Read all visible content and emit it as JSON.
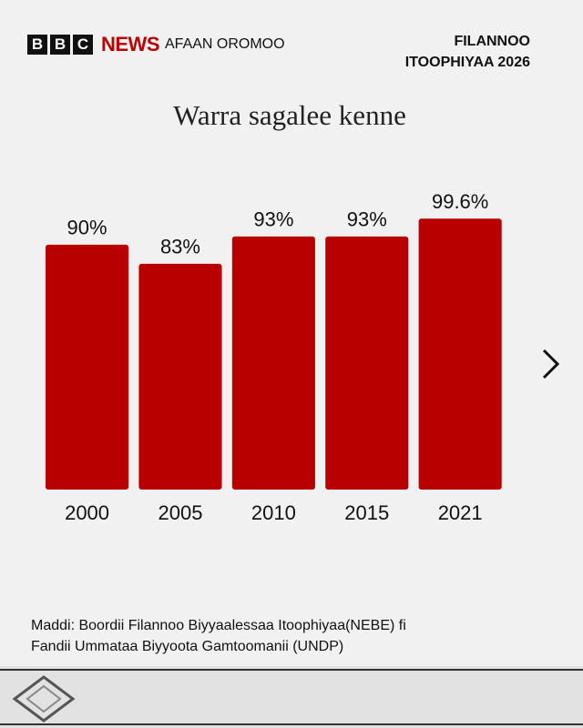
{
  "brand": {
    "letters": [
      "B",
      "B",
      "C"
    ],
    "news": "NEWS",
    "service": "AFAAN OROMOO"
  },
  "edition": [
    "FILANNOO",
    "ITOOPHIYAA 2026"
  ],
  "chart_data": {
    "type": "bar",
    "title": "Warra sagalee kenne",
    "categories": [
      "2000",
      "2005",
      "2010",
      "2015",
      "2021"
    ],
    "values": [
      90,
      83,
      93,
      93,
      99.6
    ],
    "value_labels": [
      "90%",
      "83%",
      "93%",
      "93%",
      "99.6%"
    ],
    "color": "#b80000",
    "ylim": [
      0,
      100
    ]
  },
  "source": [
    "Maddi: Boordii Filannoo Biyyaalessaa Itoophiyaa(NEBE) fi",
    "Fandii Ummataa Biyyoota Gamtoomanii (UNDP)"
  ]
}
